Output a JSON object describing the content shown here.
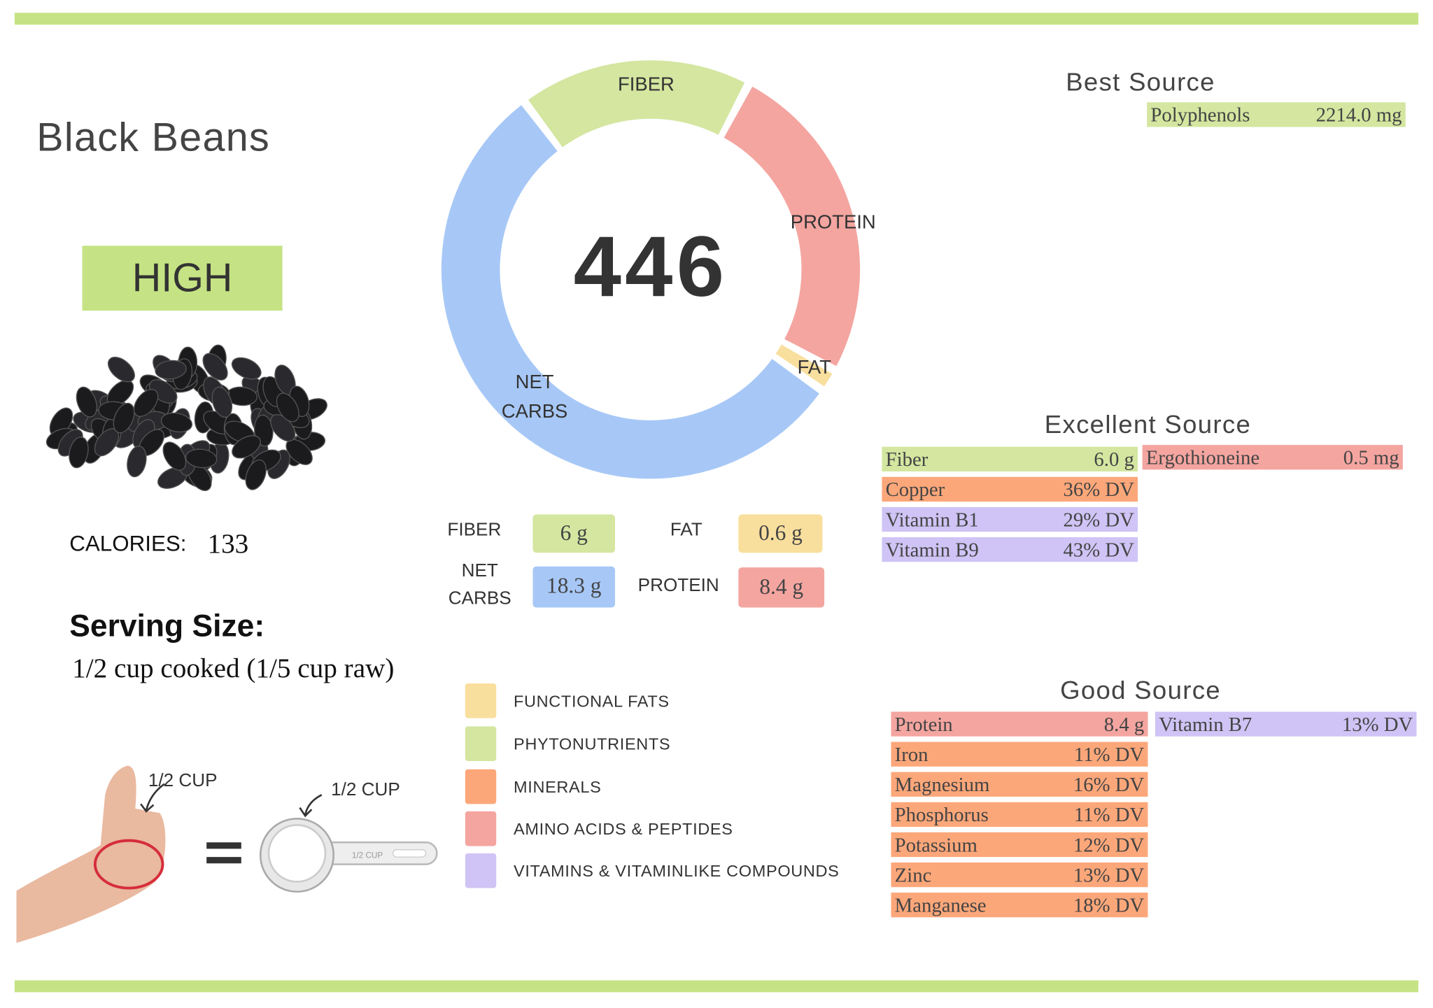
{
  "food": "Black Beans",
  "rating": "HIGH",
  "calories": {
    "label": "CALORIES:",
    "value": 133
  },
  "serving": {
    "title": "Serving Size:",
    "text": "1/2 cup cooked (1/5 cup raw)"
  },
  "measure_labels": {
    "hand": "1/2 CUP",
    "cup": "1/2 CUP",
    "cup_engraving": "1/2 CUP"
  },
  "total": 446,
  "macros": [
    {
      "name": "FIBER",
      "value": 6,
      "label": "6 g",
      "color": "#d4e6a0"
    },
    {
      "name": "PROTEIN",
      "value": 8.4,
      "label": "8.4 g",
      "color": "#f4a5a0"
    },
    {
      "name": "FAT",
      "value": 0.6,
      "label": "0.6 g",
      "color": "#f9df9e"
    },
    {
      "name": "NET CARBS",
      "value": 18.3,
      "label": "18.3 g",
      "color": "#a7c8f7"
    }
  ],
  "legend": [
    {
      "name": "FUNCTIONAL FATS",
      "color": "#f9df9e"
    },
    {
      "name": "PHYTONUTRIENTS",
      "color": "#d4e6a0"
    },
    {
      "name": "MINERALS",
      "color": "#fca77a"
    },
    {
      "name": "AMINO ACIDS & PEPTIDES",
      "color": "#f4a5a0"
    },
    {
      "name": "VITAMINS & VITAMINLIKE COMPOUNDS",
      "color": "#cfc4f5"
    }
  ],
  "sources": [
    {
      "title": "Best Source",
      "columns": [
        [
          {
            "name": "Polyphenols",
            "amount": "2214.0 mg",
            "color": "#d4e6a0"
          }
        ]
      ]
    },
    {
      "title": "Excellent Source",
      "columns": [
        [
          {
            "name": "Fiber",
            "amount": "6.0 g",
            "color": "#d4e6a0"
          },
          {
            "name": "Copper",
            "amount": "36% DV",
            "color": "#fca77a"
          },
          {
            "name": "Vitamin B1",
            "amount": "29% DV",
            "color": "#cfc4f5"
          },
          {
            "name": "Vitamin B9",
            "amount": "43% DV",
            "color": "#cfc4f5"
          }
        ],
        [
          {
            "name": "Ergothioneine",
            "amount": "0.5 mg",
            "color": "#f4a5a0"
          }
        ]
      ]
    },
    {
      "title": "Good Source",
      "columns": [
        [
          {
            "name": "Protein",
            "amount": "8.4 g",
            "color": "#f4a5a0"
          },
          {
            "name": "Iron",
            "amount": "11% DV",
            "color": "#fca77a"
          },
          {
            "name": "Magnesium",
            "amount": "16% DV",
            "color": "#fca77a"
          },
          {
            "name": "Phosphorus",
            "amount": "11% DV",
            "color": "#fca77a"
          },
          {
            "name": "Potassium",
            "amount": "12% DV",
            "color": "#fca77a"
          },
          {
            "name": "Zinc",
            "amount": "13% DV",
            "color": "#fca77a"
          },
          {
            "name": "Manganese",
            "amount": "18% DV",
            "color": "#fca77a"
          }
        ],
        [
          {
            "name": "Vitamin B7",
            "amount": "13% DV",
            "color": "#cfc4f5"
          }
        ]
      ]
    }
  ]
}
